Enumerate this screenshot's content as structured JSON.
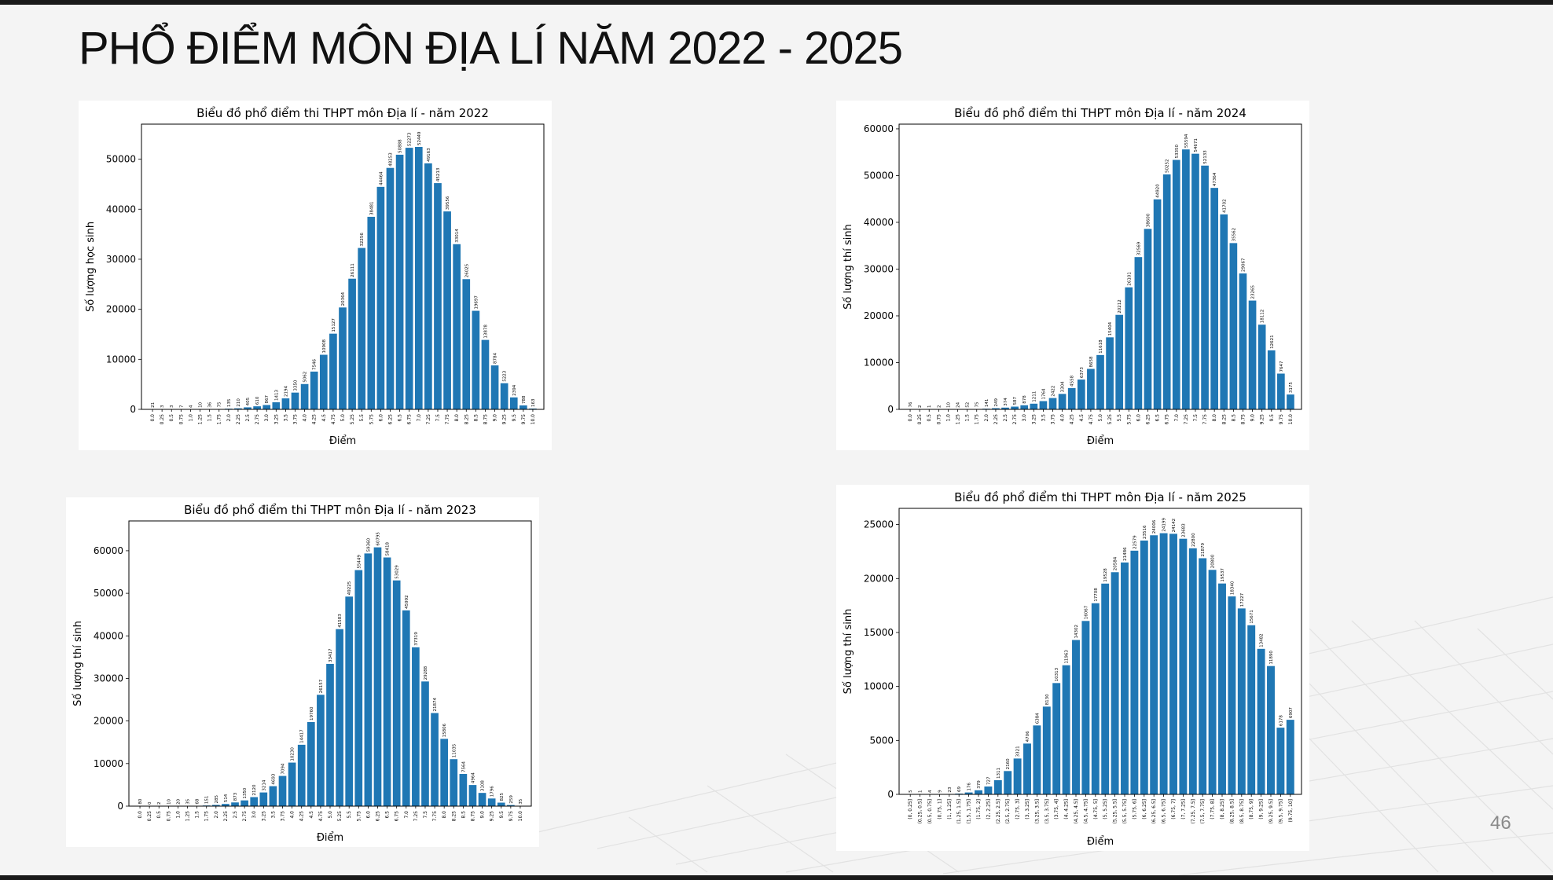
{
  "slide": {
    "title": "PHỔ ĐIỂM MÔN ĐỊA LÍ NĂM 2022 - 2025",
    "page_number": "46"
  },
  "colors": {
    "bar": "#1f77b4",
    "title": "#111111",
    "page_number": "#8a8a8a"
  },
  "chart_data": [
    {
      "id": "2022",
      "type": "bar",
      "title": "Biểu đồ phổ điểm thi THPT môn Địa lí - năm 2022",
      "xlabel": "Điểm",
      "ylabel": "Số lượng học sinh",
      "ylim": [
        0,
        57000
      ],
      "yticks": [
        0,
        10000,
        20000,
        30000,
        40000,
        50000
      ],
      "grid": false,
      "categories": [
        "0.0",
        "0.25",
        "0.5",
        "0.75",
        "1.0",
        "1.25",
        "1.5",
        "1.75",
        "2.0",
        "2.25",
        "2.5",
        "2.75",
        "3.0",
        "3.25",
        "3.5",
        "3.75",
        "4.0",
        "4.25",
        "4.5",
        "4.75",
        "5.0",
        "5.25",
        "5.5",
        "5.75",
        "6.0",
        "6.25",
        "6.5",
        "6.75",
        "7.0",
        "7.25",
        "7.5",
        "7.75",
        "8.0",
        "8.25",
        "8.5",
        "8.75",
        "9.0",
        "9.25",
        "9.5",
        "9.75",
        "10.0"
      ],
      "values": [
        21,
        3,
        3,
        7,
        4,
        10,
        36,
        75,
        135,
        210,
        405,
        610,
        867,
        1413,
        2194,
        3350,
        5062,
        7546,
        10908,
        15127,
        20364,
        26111,
        32256,
        38481,
        44464,
        48253,
        50888,
        52273,
        52449,
        49163,
        45213,
        39556,
        33014,
        26025,
        19697,
        13878,
        8784,
        5223,
        2394,
        788,
        163
      ],
      "data_labels": [
        "21",
        "3",
        "3",
        "7",
        "4",
        "10",
        "36",
        "75",
        "135",
        "210",
        "405",
        "610",
        "867",
        "1413",
        "2194",
        "3350",
        "5062",
        "7546",
        "10908",
        "15127",
        "20364",
        "26111",
        "32256",
        "38481",
        "44464",
        "48253",
        "50888",
        "52273",
        "52449",
        "49163",
        "45213",
        "39556",
        "33014",
        "26025",
        "19697",
        "13878",
        "8784",
        "5223",
        "2394",
        "788",
        "163"
      ]
    },
    {
      "id": "2024",
      "type": "bar",
      "title": "Biểu đồ phổ điểm thi THPT môn Địa lí - năm 2024",
      "xlabel": "Điểm",
      "ylabel": "Số lượng thí sinh",
      "ylim": [
        0,
        61000
      ],
      "yticks": [
        0,
        10000,
        20000,
        30000,
        40000,
        50000,
        60000
      ],
      "grid": false,
      "categories": [
        "0.0",
        "0.25",
        "0.5",
        "0.75",
        "1.0",
        "1.25",
        "1.5",
        "1.75",
        "2.0",
        "2.25",
        "2.5",
        "2.75",
        "3.0",
        "3.25",
        "3.5",
        "3.75",
        "4.0",
        "4.25",
        "4.5",
        "4.75",
        "5.0",
        "5.25",
        "5.5",
        "5.75",
        "6.0",
        "6.25",
        "6.5",
        "6.75",
        "7.0",
        "7.25",
        "7.5",
        "7.75",
        "8.0",
        "8.25",
        "8.5",
        "8.75",
        "9.0",
        "9.25",
        "9.5",
        "9.75",
        "10.0"
      ],
      "values": [
        76,
        2,
        1,
        2,
        10,
        24,
        52,
        75,
        141,
        249,
        374,
        587,
        878,
        1211,
        1764,
        2422,
        3304,
        4558,
        6373,
        8658,
        11618,
        15404,
        20212,
        26101,
        32569,
        38600,
        44920,
        50252,
        53350,
        55594,
        54671,
        52133,
        47364,
        41702,
        35562,
        29067,
        23265,
        18112,
        12621,
        7647,
        3175
      ],
      "data_labels": [
        "76",
        "2",
        "1",
        "2",
        "10",
        "24",
        "52",
        "75",
        "141",
        "249",
        "374",
        "587",
        "878",
        "1211",
        "1764",
        "2422",
        "3304",
        "4558",
        "6373",
        "8658",
        "11618",
        "15404",
        "20212",
        "26101",
        "32569",
        "38600",
        "44920",
        "50252",
        "53350",
        "55594",
        "54671",
        "52133",
        "47364",
        "41702",
        "35562",
        "29067",
        "23265",
        "18112",
        "12621",
        "7647",
        "3175"
      ]
    },
    {
      "id": "2023",
      "type": "bar",
      "title": "Biểu đồ phổ điểm thi THPT môn Địa lí - năm 2023",
      "xlabel": "Điểm",
      "ylabel": "Số lượng thí sinh",
      "ylim": [
        0,
        67000
      ],
      "yticks": [
        0,
        10000,
        20000,
        30000,
        40000,
        50000,
        60000
      ],
      "grid": false,
      "categories": [
        "0.0",
        "0.25",
        "0.5",
        "0.75",
        "1.0",
        "1.25",
        "1.5",
        "1.75",
        "2.0",
        "2.25",
        "2.5",
        "2.75",
        "3.0",
        "3.25",
        "3.5",
        "3.75",
        "4.0",
        "4.25",
        "4.5",
        "4.75",
        "5.0",
        "5.25",
        "5.5",
        "5.75",
        "6.0",
        "6.25",
        "6.5",
        "6.75",
        "7.0",
        "7.25",
        "7.5",
        "7.75",
        "8.0",
        "8.25",
        "8.5",
        "8.75",
        "9.0",
        "9.25",
        "9.5",
        "9.75",
        "10.0"
      ],
      "values": [
        80,
        0,
        2,
        10,
        20,
        35,
        68,
        151,
        285,
        514,
        873,
        1350,
        2120,
        3214,
        4693,
        7094,
        10230,
        14417,
        19760,
        26157,
        33417,
        41583,
        49225,
        55449,
        59360,
        60795,
        58418,
        53029,
        45992,
        37319,
        29288,
        21874,
        15806,
        11035,
        7564,
        4964,
        3108,
        1796,
        825,
        259,
        35
      ],
      "data_labels": [
        "80",
        "0",
        "2",
        "10",
        "20",
        "35",
        "68",
        "151",
        "285",
        "514",
        "873",
        "1350",
        "2120",
        "3214",
        "4693",
        "7094",
        "10230",
        "14417",
        "19760",
        "26157",
        "33417",
        "41583",
        "49225",
        "55449",
        "59360",
        "60795",
        "58418",
        "53029",
        "45992",
        "37319",
        "29288",
        "21874",
        "15806",
        "11035",
        "7564",
        "4964",
        "3108",
        "1796",
        "825",
        "259",
        "35"
      ]
    },
    {
      "id": "2025",
      "type": "bar",
      "title": "Biểu đồ phổ điểm thi THPT môn Địa lí - năm 2025",
      "xlabel": "Điểm",
      "ylabel": "Số lượng thí sinh",
      "ylim": [
        0,
        26500
      ],
      "yticks": [
        0,
        5000,
        10000,
        15000,
        20000,
        25000
      ],
      "grid": false,
      "categories": [
        "(0, 0.25]",
        "(0.25, 0.5]",
        "(0.5, 0.75]",
        "(0.75, 1]",
        "(1, 1.25]",
        "(1.25, 1.5]",
        "(1.5, 1.75]",
        "(1.75, 2]",
        "(2, 2.25]",
        "(2.25, 2.5]",
        "(2.5, 2.75]",
        "(2.75, 3]",
        "(3, 3.25]",
        "(3.25, 3.5]",
        "(3.5, 3.75]",
        "(3.75, 4]",
        "(4, 4.25]",
        "(4.25, 4.5]",
        "(4.5, 4.75]",
        "(4.75, 5]",
        "(5, 5.25]",
        "(5.25, 5.5]",
        "(5.5, 5.75]",
        "(5.75, 6]",
        "(6, 6.25]",
        "(6.25, 6.5]",
        "(6.5, 6.75]",
        "(6.75, 7]",
        "(7, 7.25]",
        "(7.25, 7.5]",
        "(7.5, 7.75]",
        "(7.75, 8]",
        "(8, 8.25]",
        "(8.25, 8.5]",
        "(8.5, 8.75]",
        "(8.75, 9]",
        "(9, 9.25]",
        "(9.25, 9.5]",
        "(9.5, 9.75]",
        "(9.75, 10]"
      ],
      "values": [
        5,
        1,
        4,
        9,
        23,
        69,
        176,
        379,
        727,
        1311,
        2160,
        3321,
        4706,
        6384,
        8130,
        10313,
        11963,
        14302,
        16067,
        17708,
        19528,
        20584,
        21486,
        22579,
        23516,
        24006,
        24199,
        24142,
        23683,
        22800,
        21879,
        20800,
        19537,
        18340,
        17227,
        15671,
        13482,
        11890,
        6178,
        6907
      ],
      "data_labels": [
        "5",
        "1",
        "4",
        "9",
        "23",
        "69",
        "176",
        "379",
        "727",
        "1311",
        "2160",
        "3321",
        "4706",
        "6384",
        "8130",
        "10313",
        "11963",
        "14302",
        "16067",
        "17708",
        "19528",
        "20584",
        "21486",
        "22579",
        "23516",
        "24006",
        "24199",
        "24142",
        "23683",
        "22800",
        "21879",
        "20800",
        "19537",
        "18340",
        "17227",
        "15671",
        "13482",
        "11890",
        "6178",
        "6907"
      ]
    }
  ]
}
